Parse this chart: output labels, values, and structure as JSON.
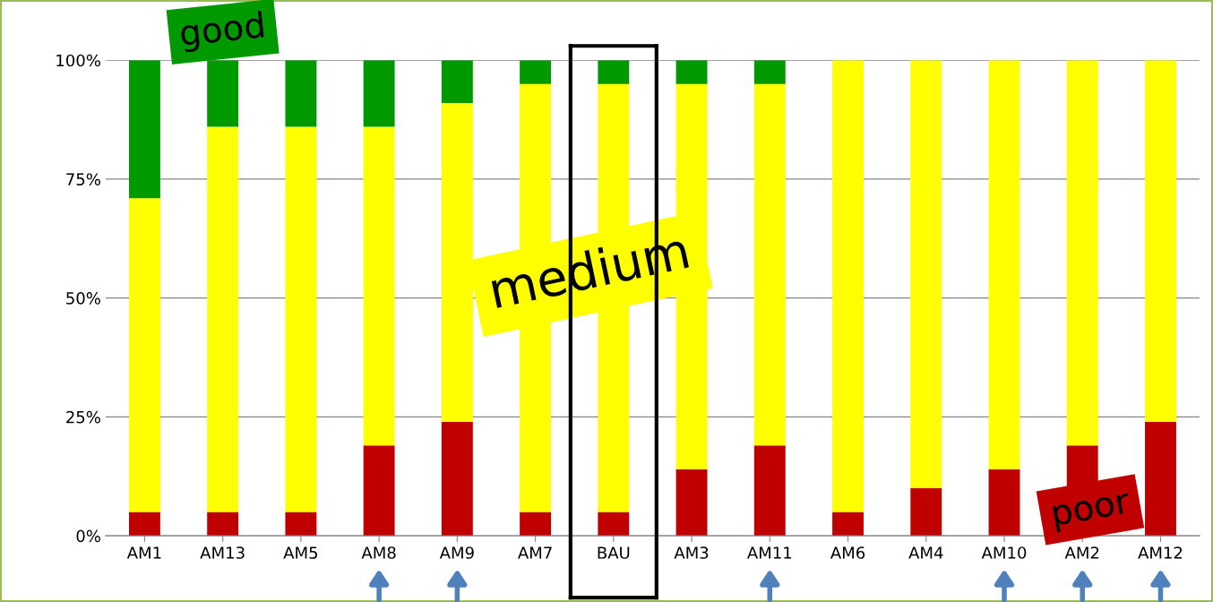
{
  "chart_data": {
    "type": "bar",
    "stacked": true,
    "categories": [
      "AM1",
      "AM13",
      "AM5",
      "AM8",
      "AM9",
      "AM7",
      "BAU",
      "AM3",
      "AM11",
      "AM6",
      "AM4",
      "AM10",
      "AM2",
      "AM12"
    ],
    "series": [
      {
        "name": "poor",
        "color": "#c00000",
        "values": [
          5,
          5,
          5,
          19,
          24,
          5,
          5,
          14,
          19,
          5,
          10,
          14,
          19,
          24
        ]
      },
      {
        "name": "medium",
        "color": "#ffff00",
        "values": [
          66,
          81,
          81,
          67,
          67,
          90,
          90,
          81,
          76,
          95,
          90,
          86,
          81,
          76
        ]
      },
      {
        "name": "good",
        "color": "#009900",
        "values": [
          29,
          14,
          14,
          14,
          9,
          5,
          5,
          5,
          5,
          0,
          0,
          0,
          0,
          0
        ]
      }
    ],
    "ylim": [
      0,
      100
    ],
    "yticks": [
      {
        "value": 0,
        "label": "0%"
      },
      {
        "value": 25,
        "label": "25%"
      },
      {
        "value": 50,
        "label": "50%"
      },
      {
        "value": 75,
        "label": "75%"
      },
      {
        "value": 100,
        "label": "100%"
      }
    ],
    "grid": "y",
    "legend": false
  }
}
